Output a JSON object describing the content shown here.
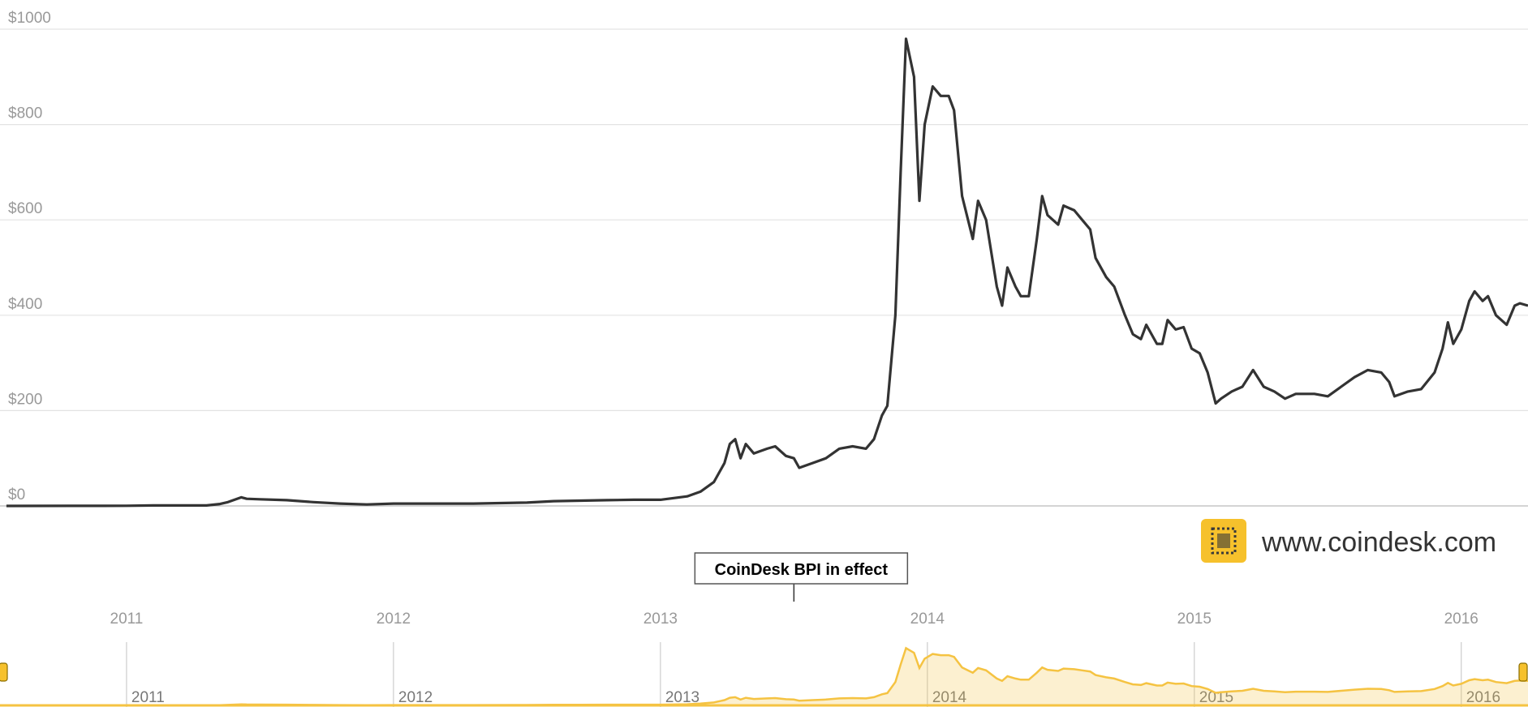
{
  "chart_data": {
    "type": "line",
    "annotation": {
      "text": "CoinDesk BPI in effect",
      "x": 2013.5
    },
    "watermark": "www.coindesk.com",
    "color": "#333333",
    "navigator_color": "#f5c342",
    "grid": true,
    "x": [
      2010.55,
      2010.8,
      2011.0,
      2011.1,
      2011.3,
      2011.35,
      2011.38,
      2011.43,
      2011.45,
      2011.5,
      2011.6,
      2011.7,
      2011.8,
      2011.9,
      2012.0,
      2012.1,
      2012.2,
      2012.3,
      2012.5,
      2012.6,
      2012.7,
      2012.8,
      2012.9,
      2013.0,
      2013.1,
      2013.15,
      2013.2,
      2013.24,
      2013.26,
      2013.28,
      2013.3,
      2013.32,
      2013.35,
      2013.4,
      2013.43,
      2013.47,
      2013.5,
      2013.52,
      2013.57,
      2013.62,
      2013.67,
      2013.72,
      2013.77,
      2013.8,
      2013.83,
      2013.85,
      2013.88,
      2013.9,
      2013.92,
      2013.95,
      2013.97,
      2013.99,
      2014.02,
      2014.05,
      2014.08,
      2014.1,
      2014.13,
      2014.17,
      2014.19,
      2014.22,
      2014.26,
      2014.28,
      2014.3,
      2014.33,
      2014.35,
      2014.38,
      2014.41,
      2014.43,
      2014.45,
      2014.49,
      2014.51,
      2014.55,
      2014.58,
      2014.61,
      2014.63,
      2014.67,
      2014.7,
      2014.74,
      2014.77,
      2014.8,
      2014.82,
      2014.86,
      2014.88,
      2014.9,
      2014.93,
      2014.96,
      2014.99,
      2015.02,
      2015.05,
      2015.08,
      2015.1,
      2015.14,
      2015.18,
      2015.22,
      2015.26,
      2015.3,
      2015.34,
      2015.38,
      2015.45,
      2015.5,
      2015.55,
      2015.6,
      2015.65,
      2015.7,
      2015.73,
      2015.75,
      2015.8,
      2015.85,
      2015.9,
      2015.93,
      2015.95,
      2015.97,
      2016.0,
      2016.03,
      2016.05,
      2016.08,
      2016.1,
      2016.13,
      2016.17,
      2016.2,
      2016.22,
      2016.25
    ],
    "values": [
      0,
      0.2,
      0.3,
      1,
      1,
      4,
      8,
      18,
      15,
      14,
      12,
      8,
      5,
      3,
      5,
      5,
      5,
      5,
      7,
      10,
      11,
      12,
      13,
      13,
      20,
      30,
      50,
      90,
      130,
      140,
      100,
      130,
      110,
      120,
      125,
      105,
      100,
      80,
      90,
      100,
      120,
      125,
      120,
      140,
      190,
      210,
      400,
      700,
      980,
      900,
      640,
      800,
      880,
      860,
      860,
      830,
      650,
      560,
      640,
      600,
      460,
      420,
      500,
      460,
      440,
      440,
      560,
      650,
      610,
      590,
      630,
      620,
      600,
      580,
      520,
      480,
      460,
      400,
      360,
      350,
      380,
      340,
      340,
      390,
      370,
      375,
      330,
      320,
      280,
      215,
      225,
      240,
      250,
      285,
      250,
      240,
      225,
      235,
      235,
      230,
      250,
      270,
      285,
      280,
      260,
      230,
      240,
      245,
      280,
      330,
      385,
      340,
      370,
      430,
      450,
      430,
      440,
      400,
      380,
      420,
      425,
      420
    ],
    "xlim": [
      2010.526,
      2016.25
    ],
    "xticks": [
      2011,
      2012,
      2013,
      2014,
      2015,
      2016
    ],
    "ylim": [
      0,
      1000
    ],
    "yticks": [
      {
        "value": 0,
        "label": "$0"
      },
      {
        "value": 200,
        "label": "$200"
      },
      {
        "value": 400,
        "label": "$400"
      },
      {
        "value": 600,
        "label": "$600"
      },
      {
        "value": 800,
        "label": "$800"
      },
      {
        "value": 1000,
        "label": "$1000"
      }
    ]
  }
}
